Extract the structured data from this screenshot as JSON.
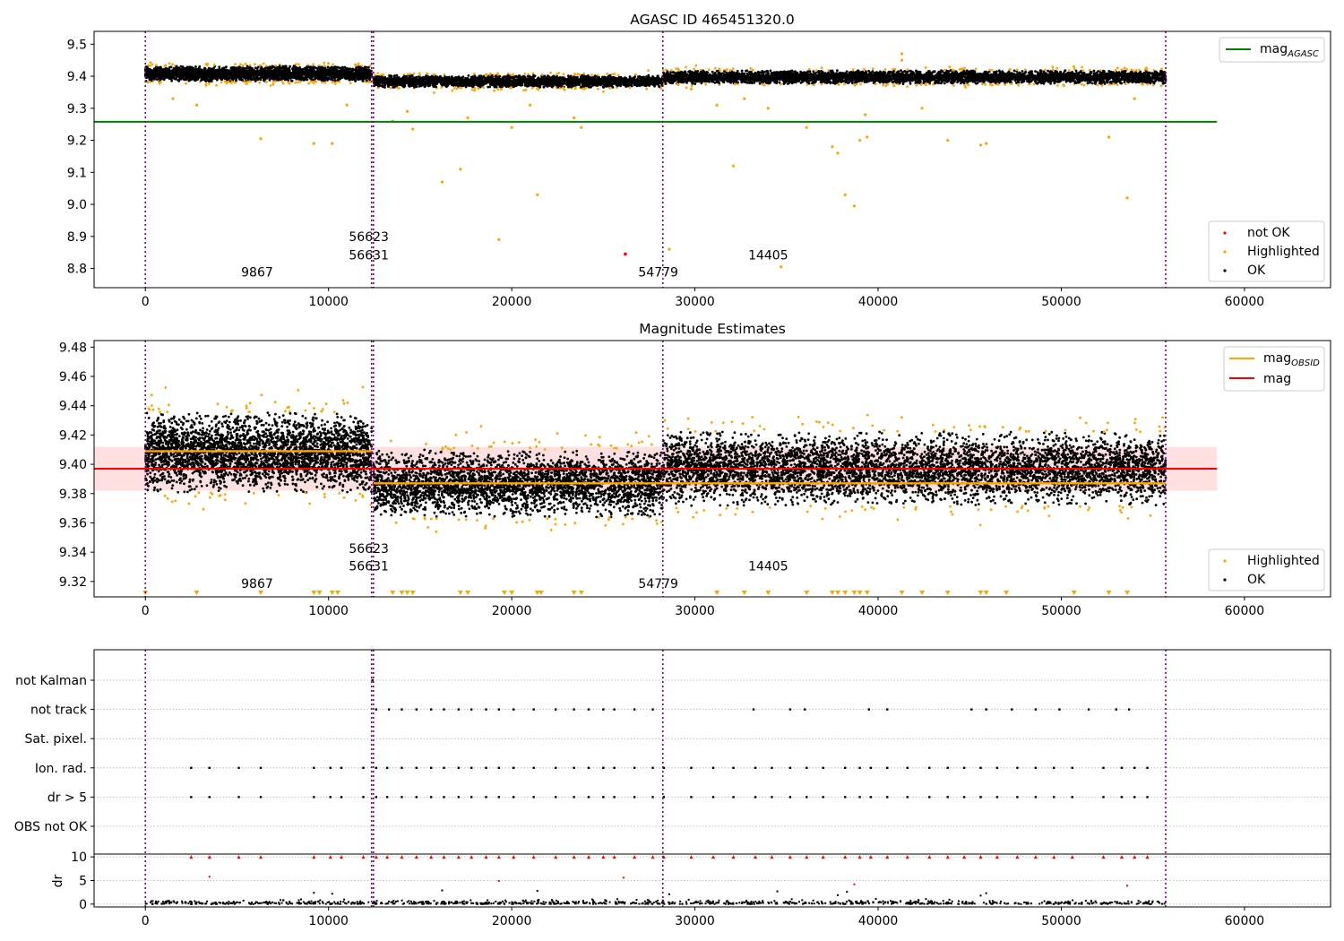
{
  "chart_data": [
    {
      "type": "scatter",
      "title": "AGASC ID 465451320.0",
      "xlim": [
        -2800,
        64700
      ],
      "ylim": [
        8.74,
        9.54
      ],
      "x_ticks": [
        "0",
        "10000",
        "20000",
        "30000",
        "40000",
        "50000",
        "60000"
      ],
      "x_tick_values": [
        0,
        10000,
        20000,
        30000,
        40000,
        50000,
        60000
      ],
      "y_ticks": [
        "9.5",
        "9.4",
        "9.3",
        "9.2",
        "9.1",
        "9.0",
        "8.9",
        "8.8"
      ],
      "y_tick_values": [
        9.5,
        9.4,
        9.3,
        9.2,
        9.1,
        9.0,
        8.9,
        8.8
      ],
      "reference_line": {
        "label": "mag",
        "subscript": "AGASC",
        "y": 9.258,
        "x_range": [
          -2800,
          58500
        ],
        "color": "#008000"
      },
      "obsid_boundaries": [
        0,
        12350,
        12450,
        28250,
        55700
      ],
      "obsid_labels": [
        {
          "text": "9867",
          "x": 6100,
          "y": 8.775
        },
        {
          "text": "56623",
          "x": 12200,
          "y": 8.885
        },
        {
          "text": "56631",
          "x": 12200,
          "y": 8.828
        },
        {
          "text": "54779",
          "x": 28000,
          "y": 8.775
        },
        {
          "text": "14405",
          "x": 34000,
          "y": 8.828
        }
      ],
      "ok_segments": [
        {
          "x": [
            0,
            12350
          ],
          "y_center": 9.408,
          "spread": 0.025,
          "count": 2600
        },
        {
          "x": [
            12450,
            28250
          ],
          "y_center": 9.384,
          "spread": 0.02,
          "count": 2600
        },
        {
          "x": [
            28250,
            55700
          ],
          "y_center": 9.397,
          "spread": 0.022,
          "count": 4200
        }
      ],
      "highlighted_outliers": [
        {
          "x": 1500,
          "y": 9.33
        },
        {
          "x": 2800,
          "y": 9.31
        },
        {
          "x": 6300,
          "y": 9.205
        },
        {
          "x": 9200,
          "y": 9.19
        },
        {
          "x": 10200,
          "y": 9.19
        },
        {
          "x": 11000,
          "y": 9.31
        },
        {
          "x": 13500,
          "y": 9.26
        },
        {
          "x": 14300,
          "y": 9.29
        },
        {
          "x": 14600,
          "y": 9.235
        },
        {
          "x": 16200,
          "y": 9.07
        },
        {
          "x": 17200,
          "y": 9.11
        },
        {
          "x": 17600,
          "y": 9.27
        },
        {
          "x": 19300,
          "y": 8.89
        },
        {
          "x": 20000,
          "y": 9.24
        },
        {
          "x": 21400,
          "y": 9.03
        },
        {
          "x": 21000,
          "y": 9.31
        },
        {
          "x": 23400,
          "y": 9.27
        },
        {
          "x": 23800,
          "y": 9.24
        },
        {
          "x": 28600,
          "y": 8.86
        },
        {
          "x": 29800,
          "y": 9.36
        },
        {
          "x": 31200,
          "y": 9.31
        },
        {
          "x": 32100,
          "y": 9.12
        },
        {
          "x": 32700,
          "y": 9.33
        },
        {
          "x": 34000,
          "y": 9.3
        },
        {
          "x": 34700,
          "y": 8.805
        },
        {
          "x": 36100,
          "y": 9.24
        },
        {
          "x": 37500,
          "y": 9.18
        },
        {
          "x": 37800,
          "y": 9.16
        },
        {
          "x": 38200,
          "y": 9.03
        },
        {
          "x": 38700,
          "y": 8.995
        },
        {
          "x": 39000,
          "y": 9.2
        },
        {
          "x": 39400,
          "y": 9.21
        },
        {
          "x": 39300,
          "y": 9.28
        },
        {
          "x": 42400,
          "y": 9.3
        },
        {
          "x": 43800,
          "y": 9.2
        },
        {
          "x": 45600,
          "y": 9.185
        },
        {
          "x": 45900,
          "y": 9.19
        },
        {
          "x": 52600,
          "y": 9.21
        },
        {
          "x": 53600,
          "y": 9.02
        },
        {
          "x": 54000,
          "y": 9.33
        },
        {
          "x": 41300,
          "y": 9.47
        },
        {
          "x": 41300,
          "y": 9.45
        }
      ],
      "not_ok_points": [
        {
          "x": 26200,
          "y": 8.845
        }
      ],
      "legends": [
        {
          "position": "upper-right",
          "entries": [
            {
              "label": "mag",
              "subscript": "AGASC",
              "marker": "line",
              "color": "#008000"
            }
          ]
        },
        {
          "position": "lower-right",
          "entries": [
            {
              "label": "not OK",
              "marker": "dot",
              "color": "#ff0000"
            },
            {
              "label": "Highlighted",
              "marker": "dot",
              "color": "#ffa500"
            },
            {
              "label": "OK",
              "marker": "dot",
              "color": "#000000"
            }
          ]
        }
      ]
    },
    {
      "type": "scatter",
      "title": "Magnitude Estimates",
      "xlim": [
        -2800,
        64700
      ],
      "ylim": [
        9.3095,
        9.4845
      ],
      "x_ticks": [
        "0",
        "10000",
        "20000",
        "30000",
        "40000",
        "50000",
        "60000"
      ],
      "x_tick_values": [
        0,
        10000,
        20000,
        30000,
        40000,
        50000,
        60000
      ],
      "y_ticks": [
        "9.48",
        "9.46",
        "9.44",
        "9.42",
        "9.40",
        "9.38",
        "9.36",
        "9.34",
        "9.32"
      ],
      "y_tick_values": [
        9.48,
        9.46,
        9.44,
        9.42,
        9.4,
        9.38,
        9.36,
        9.34,
        9.32
      ],
      "mag_line": {
        "label": "mag",
        "y": 9.397,
        "band": [
          9.382,
          9.412
        ],
        "x_range": [
          -2800,
          58500
        ],
        "color": "#ff0000"
      },
      "obsid_mag_segments": [
        {
          "x": [
            0,
            12350
          ],
          "y": 9.409
        },
        {
          "x": [
            12450,
            28250
          ],
          "y": 9.387
        },
        {
          "x": [
            28250,
            55700
          ],
          "y": 9.387
        }
      ],
      "obsid_boundaries": [
        0,
        12350,
        12450,
        28250,
        55700
      ],
      "obsid_labels": [
        {
          "text": "9867",
          "x": 6100,
          "y": 9.3155
        },
        {
          "text": "56623",
          "x": 12200,
          "y": 9.3395
        },
        {
          "text": "56631",
          "x": 12200,
          "y": 9.3275
        },
        {
          "text": "54779",
          "x": 28000,
          "y": 9.3155
        },
        {
          "text": "14405",
          "x": 34000,
          "y": 9.3275
        }
      ],
      "ok_segments": [
        {
          "x": [
            0,
            12350
          ],
          "y_center": 9.408,
          "spread": 0.026,
          "count": 3200
        },
        {
          "x": [
            12450,
            28250
          ],
          "y_center": 9.387,
          "spread": 0.022,
          "count": 3200
        },
        {
          "x": [
            28250,
            55700
          ],
          "y_center": 9.397,
          "spread": 0.024,
          "count": 5200
        }
      ],
      "clipped_low_x": [
        0,
        2800,
        6300,
        9200,
        9500,
        10200,
        10500,
        13500,
        14000,
        14300,
        14600,
        17200,
        17600,
        19600,
        20000,
        21400,
        21600,
        23400,
        23800,
        31200,
        32700,
        34000,
        36100,
        37500,
        37800,
        38200,
        38700,
        39000,
        39400,
        41300,
        42400,
        43800,
        45600,
        45900,
        47000,
        50700,
        52600,
        53600
      ],
      "legends": [
        {
          "position": "upper-right",
          "entries": [
            {
              "label": "mag",
              "subscript": "OBSID",
              "marker": "line",
              "color": "#ffa500"
            },
            {
              "label": "mag",
              "marker": "line",
              "color": "#ff0000"
            }
          ]
        },
        {
          "position": "lower-right",
          "entries": [
            {
              "label": "Highlighted",
              "marker": "dot",
              "color": "#ffa500"
            },
            {
              "label": "OK",
              "marker": "dot",
              "color": "#000000"
            }
          ]
        }
      ]
    },
    {
      "type": "scatter",
      "xlim": [
        -2800,
        64700
      ],
      "x_ticks": [
        "0",
        "10000",
        "20000",
        "30000",
        "40000",
        "50000",
        "60000"
      ],
      "x_tick_values": [
        0,
        10000,
        20000,
        30000,
        40000,
        50000,
        60000
      ],
      "flag_rows": [
        "not Kalman",
        "not track",
        "Sat. pixel.",
        "Ion. rad.",
        "dr > 5",
        "OBS not OK"
      ],
      "flag_points": {
        "not Kalman": [
          12400
        ],
        "not track": [
          12600,
          13300,
          14000,
          14800,
          15600,
          16300,
          17100,
          17800,
          18600,
          19300,
          20100,
          21200,
          22400,
          23400,
          24200,
          25000,
          25600,
          26700,
          27700,
          33200,
          35200,
          36000,
          39500,
          40500,
          45100,
          45900,
          47300,
          48600,
          49900,
          51500,
          53000,
          53700
        ],
        "Sat. pixel.": [],
        "Ion. rad.": [
          2500,
          3500,
          5100,
          6300,
          9200,
          10100,
          10700,
          11900,
          12600,
          13200,
          14000,
          14800,
          15600,
          16300,
          17100,
          17800,
          18600,
          19300,
          20100,
          21200,
          22400,
          23400,
          24200,
          25000,
          25600,
          26700,
          27700,
          28300,
          29800,
          31000,
          32100,
          33300,
          34200,
          35200,
          36100,
          37000,
          38200,
          39000,
          39600,
          40500,
          41600,
          42800,
          43800,
          44700,
          45600,
          46500,
          47600,
          48600,
          49600,
          50600,
          52300,
          53300,
          54000,
          54700
        ],
        "dr > 5": [
          2500,
          3500,
          5100,
          6300,
          9200,
          10100,
          10700,
          11900,
          12600,
          13200,
          14000,
          14800,
          15600,
          16300,
          17100,
          17800,
          18600,
          19300,
          20100,
          21200,
          22400,
          23400,
          24200,
          25000,
          25600,
          26700,
          27700,
          28300,
          29800,
          31000,
          32100,
          33300,
          34200,
          35200,
          36100,
          37000,
          38200,
          39000,
          39600,
          40500,
          41600,
          42800,
          43800,
          44700,
          45600,
          46500,
          47600,
          48600,
          49600,
          50600,
          52300,
          53300,
          54000,
          54700
        ],
        "OBS not OK": []
      },
      "dr_panel": {
        "ylabel": "dr",
        "y_ticks": [
          "10",
          "5",
          "0"
        ],
        "y_tick_values": [
          10,
          5,
          0
        ],
        "ylim": [
          -0.6,
          10.6
        ],
        "clipped_x": [
          2500,
          3500,
          5100,
          6300,
          9200,
          10100,
          10700,
          11900,
          12600,
          13200,
          14000,
          14800,
          15600,
          16300,
          17100,
          17800,
          18600,
          19300,
          20100,
          21200,
          22400,
          23400,
          24200,
          25000,
          25600,
          26700,
          27700,
          28300,
          29800,
          31000,
          32100,
          33300,
          34200,
          35200,
          36100,
          37000,
          38200,
          39000,
          39600,
          40500,
          41600,
          42800,
          43800,
          44700,
          45600,
          46500,
          47600,
          48600,
          49600,
          50600,
          52300,
          53300,
          54000,
          54700
        ],
        "red_points": [
          {
            "x": 3500,
            "y": 5.8
          },
          {
            "x": 19300,
            "y": 4.9
          },
          {
            "x": 26100,
            "y": 5.6
          },
          {
            "x": 38700,
            "y": 4.2
          },
          {
            "x": 53600,
            "y": 3.9
          }
        ],
        "black_points": [
          {
            "x": 9200,
            "y": 2.4
          },
          {
            "x": 10200,
            "y": 2.2
          },
          {
            "x": 16200,
            "y": 2.9
          },
          {
            "x": 21400,
            "y": 2.8
          },
          {
            "x": 28600,
            "y": 2.1
          },
          {
            "x": 34500,
            "y": 2.7
          },
          {
            "x": 37800,
            "y": 1.9
          },
          {
            "x": 38300,
            "y": 2.6
          },
          {
            "x": 45900,
            "y": 2.3
          },
          {
            "x": 45600,
            "y": 1.8
          }
        ]
      },
      "obsid_boundaries": [
        0,
        12350,
        12450,
        28250,
        55700
      ]
    }
  ]
}
